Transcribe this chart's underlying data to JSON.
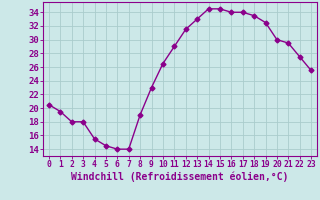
{
  "x": [
    0,
    1,
    2,
    3,
    4,
    5,
    6,
    7,
    8,
    9,
    10,
    11,
    12,
    13,
    14,
    15,
    16,
    17,
    18,
    19,
    20,
    21,
    22,
    23
  ],
  "y": [
    20.5,
    19.5,
    18.0,
    18.0,
    15.5,
    14.5,
    14.0,
    14.0,
    19.0,
    23.0,
    26.5,
    29.0,
    31.5,
    33.0,
    34.5,
    34.5,
    34.0,
    34.0,
    33.5,
    32.5,
    30.0,
    29.5,
    27.5,
    25.5
  ],
  "line_color": "#8B008B",
  "marker": "D",
  "markersize": 2.5,
  "linewidth": 1.0,
  "bg_color": "#cce8e8",
  "grid_color": "#aacccc",
  "xlabel": "Windchill (Refroidissement éolien,°C)",
  "xlim": [
    -0.5,
    23.5
  ],
  "ylim": [
    13,
    35.5
  ],
  "yticks": [
    14,
    16,
    18,
    20,
    22,
    24,
    26,
    28,
    30,
    32,
    34
  ],
  "xticks": [
    0,
    1,
    2,
    3,
    4,
    5,
    6,
    7,
    8,
    9,
    10,
    11,
    12,
    13,
    14,
    15,
    16,
    17,
    18,
    19,
    20,
    21,
    22,
    23
  ],
  "label_color": "#8B008B",
  "tick_color": "#8B008B",
  "xlabel_fontsize": 7.0,
  "ytick_fontsize": 6.5,
  "xtick_fontsize": 5.8,
  "spine_color": "#8B008B"
}
